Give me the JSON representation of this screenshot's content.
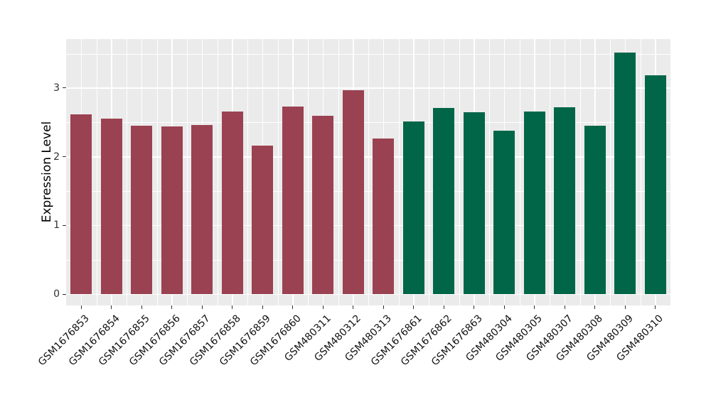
{
  "chart_data": {
    "type": "bar",
    "title": "",
    "xlabel": "",
    "ylabel": "Expression Level",
    "categories": [
      "GSM1676853",
      "GSM1676854",
      "GSM1676855",
      "GSM1676856",
      "GSM1676857",
      "GSM1676858",
      "GSM1676859",
      "GSM1676860",
      "GSM480311",
      "GSM480312",
      "GSM480313",
      "GSM1676861",
      "GSM1676862",
      "GSM1676863",
      "GSM480304",
      "GSM480305",
      "GSM480307",
      "GSM480308",
      "GSM480309",
      "GSM480310"
    ],
    "values": [
      2.62,
      2.55,
      2.45,
      2.44,
      2.46,
      2.66,
      2.16,
      2.73,
      2.6,
      2.97,
      2.26,
      2.51,
      2.71,
      2.65,
      2.38,
      2.66,
      2.72,
      2.45,
      3.52,
      3.19
    ],
    "bar_groups": [
      "maroon",
      "maroon",
      "maroon",
      "maroon",
      "maroon",
      "maroon",
      "maroon",
      "maroon",
      "maroon",
      "maroon",
      "maroon",
      "green",
      "green",
      "green",
      "green",
      "green",
      "green",
      "green",
      "green",
      "green"
    ],
    "group_colors": {
      "maroon": "#9A4251",
      "green": "#016647"
    },
    "yticks": [
      0,
      1,
      2,
      3
    ],
    "yticks_minor": [
      0.5,
      1.5,
      2.5,
      3.5
    ],
    "ylim": [
      -0.17,
      3.71
    ],
    "x_label_rotation_deg": 45,
    "legend": "none",
    "grid": "major and minor white gridlines on gray panel",
    "panel_bg": "#EBEBEB",
    "grid_color": "#FFFFFF",
    "tick_mark_color": "#333333"
  }
}
